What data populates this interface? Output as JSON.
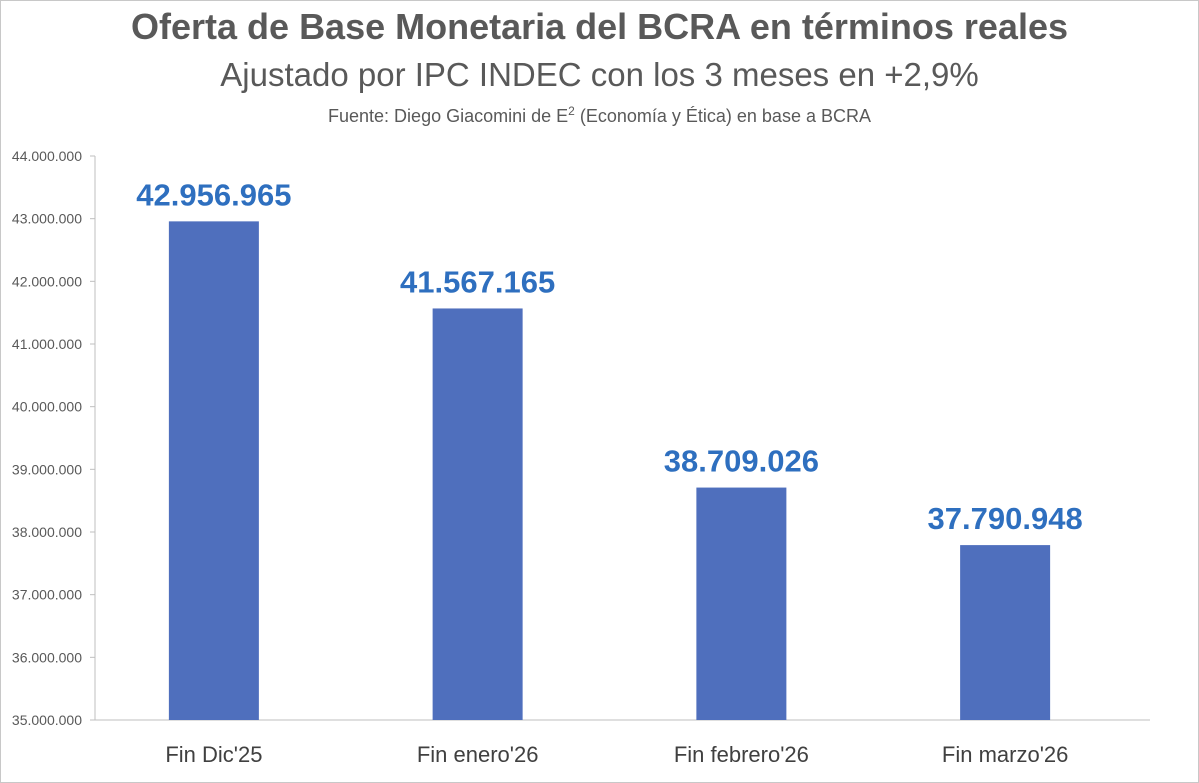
{
  "chart_data": {
    "type": "bar",
    "title": "Oferta de Base Monetaria del BCRA en términos reales",
    "subtitle": "Ajustado por IPC INDEC con los 3 meses en +2,9%",
    "source": {
      "prefix": "Fuente: Diego Giacomini de E",
      "superscript": "2",
      "suffix": " (Economía y Ética) en base a BCRA"
    },
    "categories": [
      "Fin Dic'25",
      "Fin enero'26",
      "Fin febrero'26",
      "Fin marzo'26"
    ],
    "values": [
      42956965,
      41567165,
      38709026,
      37790948
    ],
    "value_labels": [
      "42.956.965",
      "41.567.165",
      "38.709.026",
      "37.790.948"
    ],
    "ylim": [
      35000000,
      44000000
    ],
    "yticks": [
      35000000,
      36000000,
      37000000,
      38000000,
      39000000,
      40000000,
      41000000,
      42000000,
      43000000,
      44000000
    ],
    "ytick_labels": [
      "35.000.000",
      "36.000.000",
      "37.000.000",
      "38.000.000",
      "39.000.000",
      "40.000.000",
      "41.000.000",
      "42.000.000",
      "43.000.000",
      "44.000.000"
    ],
    "xlabel": "",
    "ylabel": "",
    "grid": false,
    "colors": {
      "bar": "#4f6fbd",
      "value_label": "#2e6fbf",
      "axis": "#bfbfbf"
    }
  }
}
